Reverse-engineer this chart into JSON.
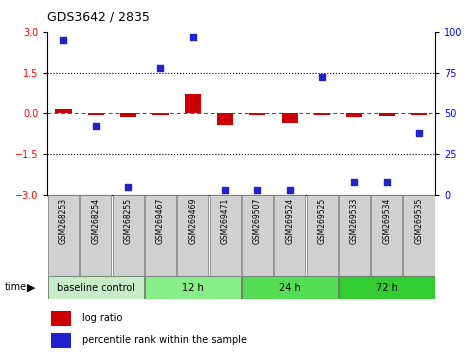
{
  "title": "GDS3642 / 2835",
  "samples": [
    "GSM268253",
    "GSM268254",
    "GSM268255",
    "GSM269467",
    "GSM269469",
    "GSM269471",
    "GSM269507",
    "GSM269524",
    "GSM269525",
    "GSM269533",
    "GSM269534",
    "GSM269535"
  ],
  "log_ratio": [
    0.15,
    -0.08,
    -0.12,
    -0.05,
    0.7,
    -0.45,
    -0.06,
    -0.35,
    -0.06,
    -0.12,
    -0.1,
    -0.07
  ],
  "percentile_rank": [
    95,
    42,
    5,
    78,
    97,
    3,
    3,
    3,
    72,
    8,
    8,
    38
  ],
  "ylim_left": [
    -3,
    3
  ],
  "ylim_right": [
    0,
    100
  ],
  "yticks_left": [
    -3,
    -1.5,
    0,
    1.5,
    3
  ],
  "yticks_right": [
    0,
    25,
    50,
    75,
    100
  ],
  "bar_color": "#cc0000",
  "scatter_color": "#2222cc",
  "groups": [
    {
      "label": "baseline control",
      "start": 0,
      "end": 3,
      "color": "#c8ecc8"
    },
    {
      "label": "12 h",
      "start": 3,
      "end": 6,
      "color": "#88ee88"
    },
    {
      "label": "24 h",
      "start": 6,
      "end": 9,
      "color": "#55dd55"
    },
    {
      "label": "72 h",
      "start": 9,
      "end": 12,
      "color": "#33cc33"
    }
  ],
  "legend_items": [
    {
      "label": "log ratio",
      "color": "#cc0000"
    },
    {
      "label": "percentile rank within the sample",
      "color": "#2222cc"
    }
  ]
}
